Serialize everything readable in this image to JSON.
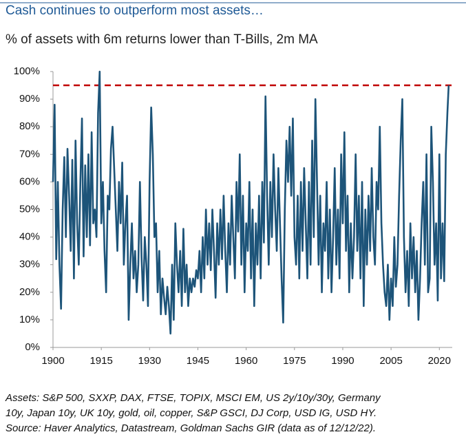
{
  "chart_data": {
    "type": "line",
    "title": "Cash continues to outperform most assets…",
    "subtitle": "% of assets with 6m returns lower than T-Bills, 2m MA",
    "notes": [
      "Assets: S&P 500, SXXP, DAX, FTSE, TOPIX, MSCI EM, US 2y/10y/30y, Germany",
      "10y, Japan 10y, UK 10y, gold, oil, copper, S&P GSCI, DJ Corp, USD IG, USD HY.",
      "Source: Haver Analytics, Datastream, Goldman Sachs GIR (data as of 12/12/22)."
    ],
    "xlim": [
      1900,
      2024
    ],
    "xticks": [
      1900,
      1915,
      1930,
      1945,
      1960,
      1975,
      1990,
      2005,
      2020
    ],
    "ylim": [
      0,
      100
    ],
    "yticks": [
      {
        "value": 0,
        "label": "0%"
      },
      {
        "value": 10,
        "label": "10%"
      },
      {
        "value": 20,
        "label": "20%"
      },
      {
        "value": 30,
        "label": "30%"
      },
      {
        "value": 40,
        "label": "40%"
      },
      {
        "value": 50,
        "label": "50%"
      },
      {
        "value": 60,
        "label": "60%"
      },
      {
        "value": 70,
        "label": "70%"
      },
      {
        "value": 80,
        "label": "80%"
      },
      {
        "value": 90,
        "label": "90%"
      },
      {
        "value": 100,
        "label": "100%"
      }
    ],
    "reference_line": {
      "value": 95,
      "color": "#c00000"
    },
    "x": [
      1900,
      1900.5,
      1901,
      1901.5,
      1902,
      1902.5,
      1903,
      1903.5,
      1904,
      1904.5,
      1905,
      1905.5,
      1906,
      1906.5,
      1907,
      1907.5,
      1908,
      1908.5,
      1909,
      1909.5,
      1910,
      1910.5,
      1911,
      1911.5,
      1912,
      1912.5,
      1913,
      1913.5,
      1914,
      1914.5,
      1915,
      1915.5,
      1916,
      1916.5,
      1917,
      1917.5,
      1918,
      1918.5,
      1919,
      1919.5,
      1920,
      1920.5,
      1921,
      1921.5,
      1922,
      1922.5,
      1923,
      1923.5,
      1924,
      1924.5,
      1925,
      1925.5,
      1926,
      1926.5,
      1927,
      1927.5,
      1928,
      1928.5,
      1929,
      1929.5,
      1930,
      1930.5,
      1931,
      1931.5,
      1932,
      1932.5,
      1933,
      1933.5,
      1934,
      1934.5,
      1935,
      1935.5,
      1936,
      1936.5,
      1937,
      1937.5,
      1938,
      1938.5,
      1939,
      1939.5,
      1940,
      1940.5,
      1941,
      1941.5,
      1942,
      1942.5,
      1943,
      1943.5,
      1944,
      1944.5,
      1945,
      1945.5,
      1946,
      1946.5,
      1947,
      1947.5,
      1948,
      1948.5,
      1949,
      1949.5,
      1950,
      1950.5,
      1951,
      1951.5,
      1952,
      1952.5,
      1953,
      1953.5,
      1954,
      1954.5,
      1955,
      1955.5,
      1956,
      1956.5,
      1957,
      1957.5,
      1958,
      1958.5,
      1959,
      1959.5,
      1960,
      1960.5,
      1961,
      1961.5,
      1962,
      1962.5,
      1963,
      1963.5,
      1964,
      1964.5,
      1965,
      1965.5,
      1966,
      1966.5,
      1967,
      1967.5,
      1968,
      1968.5,
      1969,
      1969.5,
      1970,
      1970.5,
      1971,
      1971.5,
      1972,
      1972.5,
      1973,
      1973.5,
      1974,
      1974.5,
      1975,
      1975.5,
      1976,
      1976.5,
      1977,
      1977.5,
      1978,
      1978.5,
      1979,
      1979.5,
      1980,
      1980.5,
      1981,
      1981.5,
      1982,
      1982.5,
      1983,
      1983.5,
      1984,
      1984.5,
      1985,
      1985.5,
      1986,
      1986.5,
      1987,
      1987.5,
      1988,
      1988.5,
      1989,
      1989.5,
      1990,
      1990.5,
      1991,
      1991.5,
      1992,
      1992.5,
      1993,
      1993.5,
      1994,
      1994.5,
      1995,
      1995.5,
      1996,
      1996.5,
      1997,
      1997.5,
      1998,
      1998.5,
      1999,
      1999.5,
      2000,
      2000.5,
      2001,
      2001.5,
      2002,
      2002.5,
      2003,
      2003.5,
      2004,
      2004.5,
      2005,
      2005.5,
      2006,
      2006.5,
      2007,
      2007.5,
      2008,
      2008.5,
      2009,
      2009.5,
      2010,
      2010.5,
      2011,
      2011.5,
      2012,
      2012.5,
      2013,
      2013.5,
      2014,
      2014.5,
      2015,
      2015.5,
      2016,
      2016.5,
      2017,
      2017.5,
      2018,
      2018.5,
      2019,
      2019.5,
      2020,
      2020.5,
      2021,
      2021.5,
      2022,
      2022.5,
      2022.9
    ],
    "series": [
      {
        "color": "#1d5479",
        "values": [
          60,
          88,
          32,
          60,
          30,
          14,
          50,
          69,
          40,
          72,
          55,
          35,
          68,
          25,
          75,
          45,
          30,
          60,
          83,
          33,
          66,
          40,
          70,
          37,
          78,
          45,
          50,
          40,
          85,
          100,
          45,
          60,
          35,
          20,
          55,
          50,
          72,
          80,
          65,
          50,
          35,
          60,
          45,
          67,
          30,
          45,
          55,
          10,
          30,
          45,
          25,
          35,
          20,
          30,
          60,
          33,
          17,
          40,
          30,
          15,
          60,
          87,
          70,
          40,
          45,
          20,
          35,
          12,
          25,
          18,
          12,
          22,
          15,
          5,
          30,
          10,
          45,
          30,
          20,
          35,
          15,
          43,
          20,
          30,
          15,
          25,
          20,
          25,
          22,
          28,
          25,
          35,
          20,
          40,
          25,
          50,
          30,
          45,
          28,
          50,
          35,
          18,
          45,
          30,
          50,
          32,
          55,
          35,
          20,
          45,
          30,
          55,
          40,
          25,
          60,
          42,
          70,
          30,
          55,
          20,
          45,
          35,
          60,
          25,
          50,
          15,
          45,
          30,
          55,
          25,
          60,
          38,
          91,
          55,
          30,
          60,
          40,
          70,
          50,
          35,
          65,
          45,
          25,
          9,
          50,
          75,
          60,
          80,
          55,
          83,
          40,
          30,
          55,
          25,
          60,
          35,
          65,
          45,
          25,
          60,
          30,
          75,
          40,
          90,
          60,
          30,
          55,
          20,
          45,
          35,
          60,
          25,
          50,
          20,
          40,
          65,
          30,
          50,
          25,
          70,
          45,
          78,
          35,
          55,
          20,
          45,
          25,
          40,
          70,
          35,
          55,
          25,
          60,
          15,
          50,
          30,
          55,
          35,
          65,
          40,
          30,
          60,
          50,
          80,
          45,
          30,
          20,
          15,
          30,
          10,
          25,
          15,
          40,
          22,
          30,
          55,
          75,
          90,
          40,
          20,
          35,
          15,
          45,
          25,
          40,
          20,
          35,
          10,
          25,
          45,
          60,
          30,
          70,
          20,
          25,
          80,
          60,
          30,
          45,
          17,
          70,
          25,
          45,
          24,
          70,
          85,
          95
        ]
      }
    ]
  }
}
